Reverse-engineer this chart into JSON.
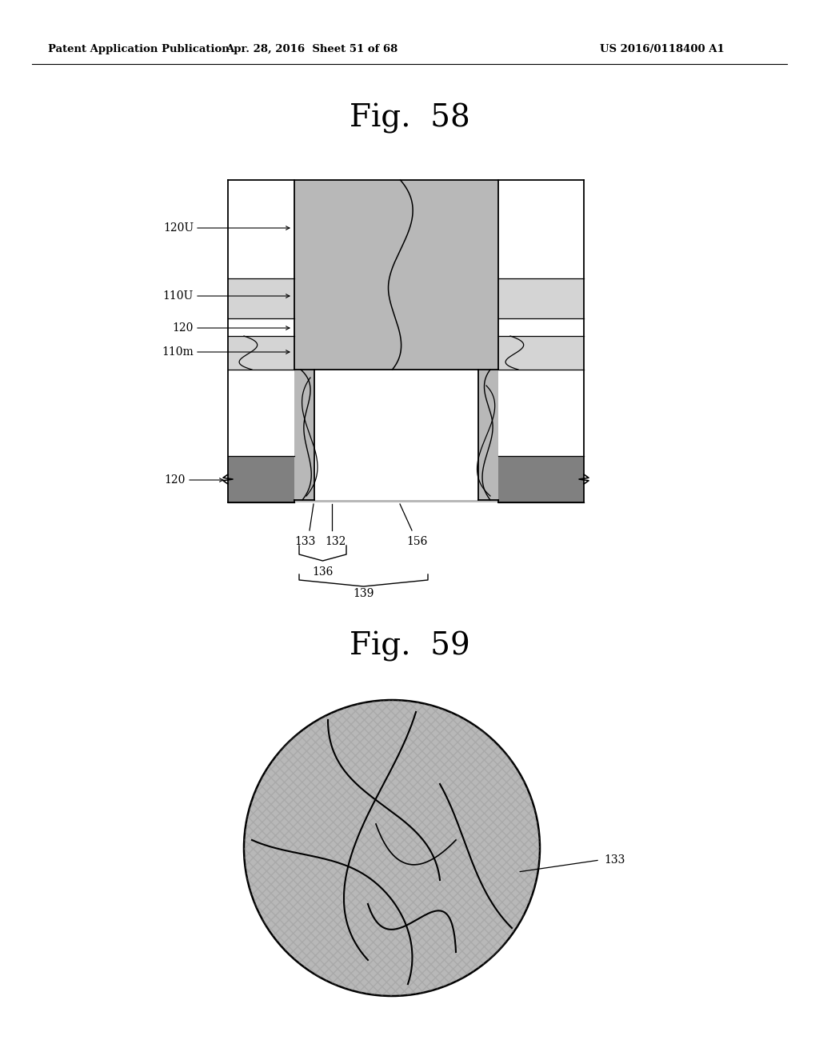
{
  "bg_color": "#ffffff",
  "header_left": "Patent Application Publication",
  "header_center": "Apr. 28, 2016  Sheet 51 of 68",
  "header_right": "US 2016/0118400 A1",
  "fig58_title": "Fig.  58",
  "fig59_title": "Fig.  59",
  "gray_medium": "#b8b8b8",
  "gray_light": "#d4d4d4",
  "gray_dark": "#808080",
  "white": "#ffffff",
  "black": "#000000",
  "label_120U": "120U",
  "label_110U": "110U",
  "label_120a": "120",
  "label_110m": "110m",
  "label_120b": "120",
  "label_133": "133",
  "label_132": "132",
  "label_136": "136",
  "label_156": "156",
  "label_139": "139",
  "label_133_fig59": "133"
}
